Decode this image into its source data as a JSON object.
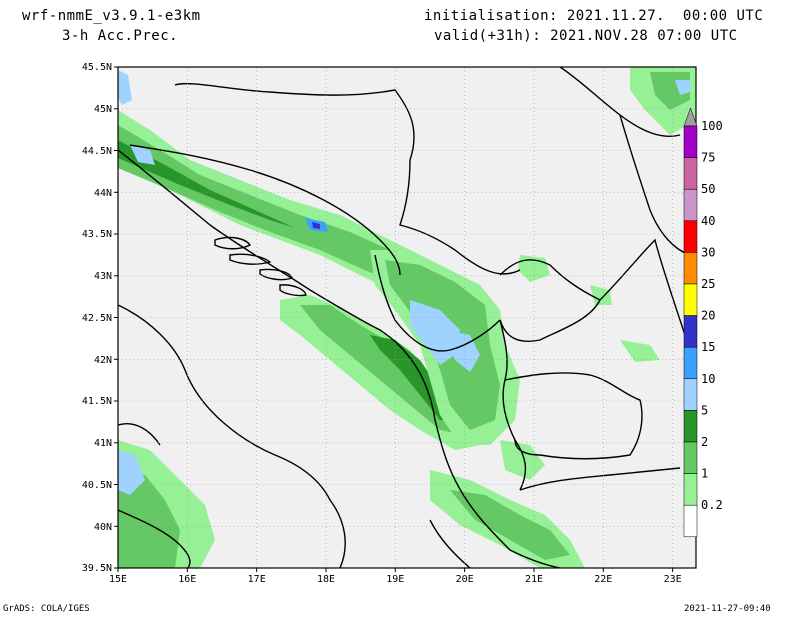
{
  "header": {
    "model": "wrf-nmmE_v3.9.1-e3km",
    "field": "3-h Acc.Prec.",
    "init": "initialisation: 2021.11.27.  00:00 UTC",
    "valid": "valid(+31h): 2021.NOV.28 07:00 UTC"
  },
  "footer": {
    "credit": "GrADS: COLA/IGES",
    "timestamp": "2021-11-27-09:40"
  },
  "axes": {
    "lat_labels": [
      "45.5N",
      "45N",
      "44.5N",
      "44N",
      "43.5N",
      "43N",
      "42.5N",
      "42N",
      "41.5N",
      "41N",
      "40.5N",
      "40N",
      "39.5N"
    ],
    "lon_labels": [
      "15E",
      "16E",
      "17E",
      "18E",
      "19E",
      "20E",
      "21E",
      "22E",
      "23E"
    ]
  },
  "colorbar": {
    "labels": [
      "100",
      "75",
      "50",
      "40",
      "30",
      "25",
      "20",
      "15",
      "10",
      "5",
      "2",
      "1",
      "0.2"
    ],
    "colors": [
      "#a0a0a0",
      "#a000c8",
      "#c8649e",
      "#c896c8",
      "#ff0000",
      "#ff8c00",
      "#ffff00",
      "#3232c8",
      "#3ca0ff",
      "#a0d2ff",
      "#289628",
      "#64c864",
      "#96f096",
      "#ffffff"
    ]
  },
  "colors": {
    "map_bg": "#f0f0f0",
    "precip_light": "#96f096",
    "precip_mid": "#64c864",
    "precip_dark": "#289628",
    "precip_blue_light": "#a0d2ff",
    "precip_blue": "#3ca0ff",
    "precip_deep_blue": "#3232c8"
  }
}
